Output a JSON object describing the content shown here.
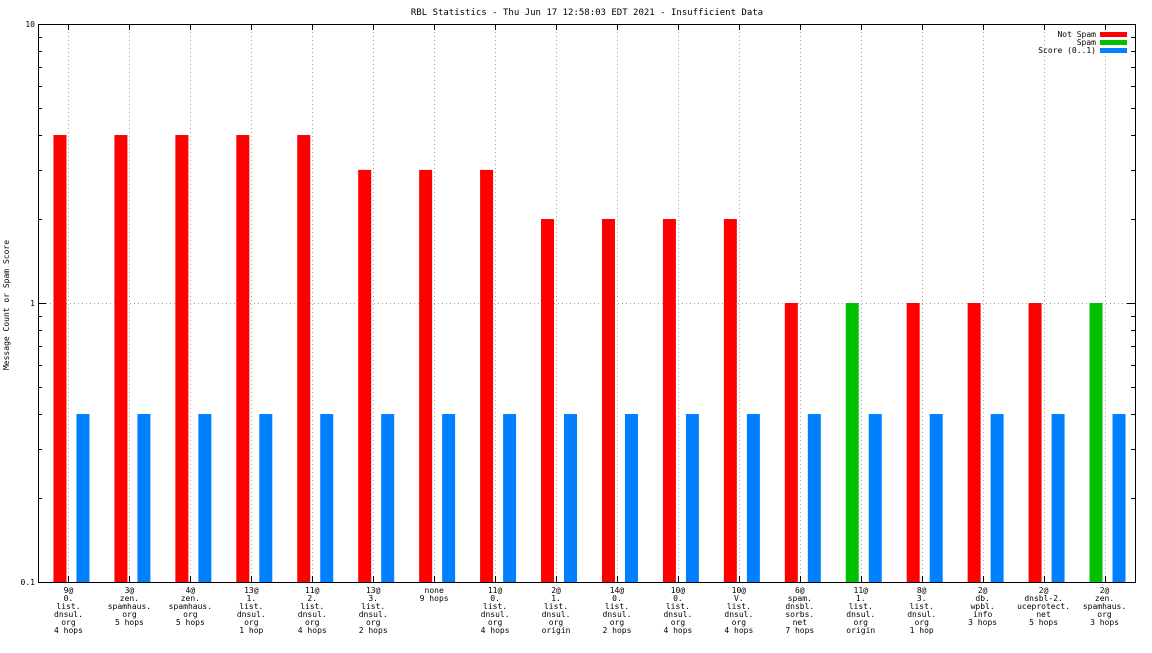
{
  "chart_data": {
    "type": "bar",
    "title": "RBL Statistics - Thu Jun 17 12:58:03 EDT 2021 - Insufficient Data",
    "ylabel": "Message Count or Spam Score",
    "xlabel": "",
    "yscale": "log",
    "ylim": [
      0.1,
      10
    ],
    "yticks": [
      {
        "value": 0.1,
        "label": "0.1"
      },
      {
        "value": 1,
        "label": "1"
      },
      {
        "value": 10,
        "label": "10"
      }
    ],
    "grid": true,
    "legend_position": "top-right",
    "categories": [
      [
        "9@",
        "0.",
        "list.",
        "dnsul.",
        "org",
        "4 hops"
      ],
      [
        "3@",
        "zen.",
        "spamhaus.",
        "org",
        "5 hops"
      ],
      [
        "4@",
        "zen.",
        "spamhaus.",
        "org",
        "5 hops"
      ],
      [
        "13@",
        "1.",
        "list.",
        "dnsul.",
        "org",
        "1 hop"
      ],
      [
        "11@",
        "2.",
        "list.",
        "dnsul.",
        "org",
        "4 hops"
      ],
      [
        "13@",
        "3.",
        "list.",
        "dnsul.",
        "org",
        "2 hops"
      ],
      [
        "none",
        "9 hops"
      ],
      [
        "11@",
        "0.",
        "list.",
        "dnsul.",
        "org",
        "4 hops"
      ],
      [
        "2@",
        "1.",
        "list.",
        "dnsul.",
        "org",
        "origin"
      ],
      [
        "14@",
        "0.",
        "list.",
        "dnsul.",
        "org",
        "2 hops"
      ],
      [
        "10@",
        "0.",
        "list.",
        "dnsul.",
        "org",
        "4 hops"
      ],
      [
        "10@",
        "V.",
        "list.",
        "dnsul.",
        "org",
        "4 hops"
      ],
      [
        "6@",
        "spam.",
        "dnsbl.",
        "sorbs.",
        "net",
        "7 hops"
      ],
      [
        "11@",
        "1.",
        "list.",
        "dnsul.",
        "org",
        "origin"
      ],
      [
        "8@",
        "3.",
        "list.",
        "dnsul.",
        "org",
        "1 hop"
      ],
      [
        "2@",
        "db.",
        "wpbl.",
        "info",
        "3 hops"
      ],
      [
        "2@",
        "dnsbl-2.",
        "uceprotect.",
        "net",
        "5 hops"
      ],
      [
        "2@",
        "zen.",
        "spamhaus.",
        "org",
        "3 hops"
      ]
    ],
    "series": [
      {
        "name": "Not Spam",
        "color": "#ff0000",
        "values": [
          4,
          4,
          4,
          4,
          4,
          3,
          3,
          3,
          2,
          2,
          2,
          2,
          1,
          null,
          1,
          1,
          1,
          null
        ]
      },
      {
        "name": "Spam",
        "color": "#00c000",
        "values": [
          null,
          null,
          null,
          null,
          null,
          null,
          null,
          null,
          null,
          null,
          null,
          null,
          null,
          1,
          null,
          null,
          null,
          1
        ]
      },
      {
        "name": "Score (0..1)",
        "color": "#0080ff",
        "values": [
          0.4,
          0.4,
          0.4,
          0.4,
          0.4,
          0.4,
          0.4,
          0.4,
          0.4,
          0.4,
          0.4,
          0.4,
          0.4,
          0.4,
          0.4,
          0.4,
          0.4,
          0.4
        ]
      }
    ]
  }
}
